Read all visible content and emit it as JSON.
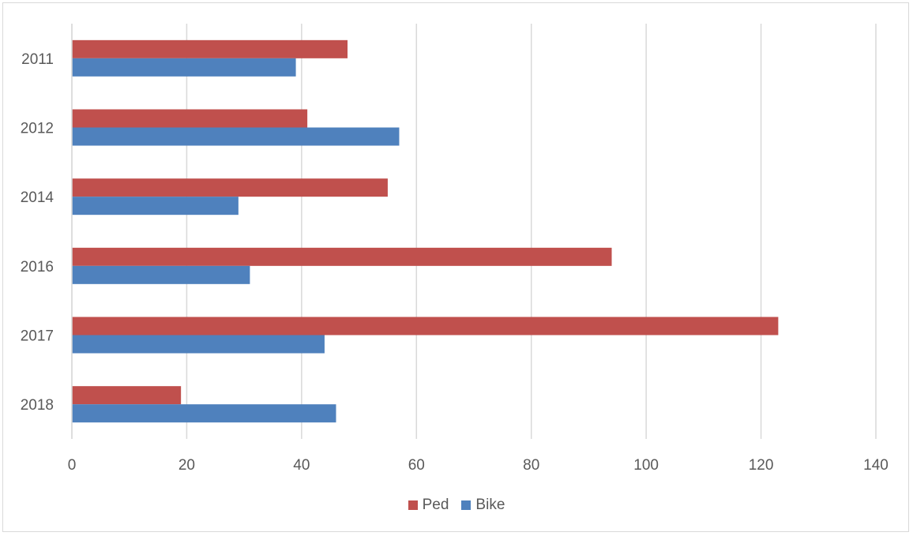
{
  "chart_data": {
    "type": "bar",
    "orientation": "horizontal",
    "categories": [
      "2011",
      "2012",
      "2014",
      "2016",
      "2017",
      "2018"
    ],
    "series": [
      {
        "name": "Ped",
        "color": "#c0504d",
        "values": [
          48,
          41,
          55,
          94,
          123,
          19
        ]
      },
      {
        "name": "Bike",
        "color": "#4f81bd",
        "values": [
          39,
          57,
          29,
          31,
          44,
          46
        ]
      }
    ],
    "xlim": [
      0,
      140
    ],
    "xticks": [
      "0",
      "20",
      "40",
      "60",
      "80",
      "100",
      "120",
      "140"
    ],
    "grid": "vertical",
    "legend_position": "bottom"
  }
}
